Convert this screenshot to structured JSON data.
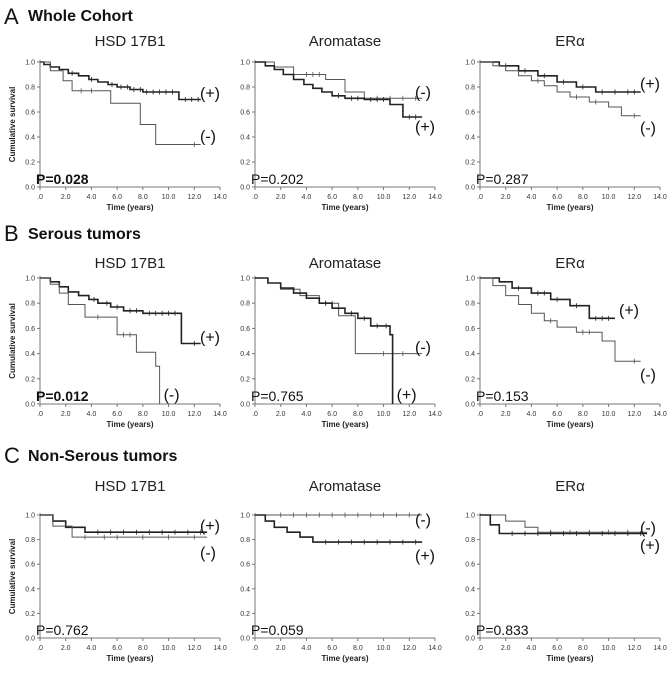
{
  "figure": {
    "sections": [
      {
        "letter": "A",
        "title": "Whole Cohort"
      },
      {
        "letter": "B",
        "title": "Serous tumors"
      },
      {
        "letter": "C",
        "title": "Non-Serous tumors"
      }
    ]
  },
  "chart_data": [
    {
      "type": "line",
      "section": "A",
      "title": "HSD 17B1",
      "xlabel": "Time (years)",
      "ylabel": "Cumulative survival",
      "xlim": [
        0,
        14
      ],
      "ylim": [
        0,
        1
      ],
      "xticks": [
        ".0",
        "2.0",
        "4.0",
        "6.0",
        "8.0",
        "10.0",
        "12.0",
        "14.0"
      ],
      "yticks": [
        "0.0",
        "0.2",
        "0.4",
        "0.6",
        "0.8",
        "1.0"
      ],
      "p_value": "P=0.028",
      "significant": true,
      "series": [
        {
          "name": "(+)",
          "color": "#222222",
          "width": 1.6,
          "x": [
            0,
            0.3,
            0.8,
            1.5,
            2.2,
            3.0,
            3.8,
            4.5,
            5.3,
            6.0,
            7.0,
            8.0,
            10.8,
            12.5
          ],
          "y": [
            1.0,
            0.98,
            0.96,
            0.94,
            0.91,
            0.89,
            0.86,
            0.84,
            0.82,
            0.8,
            0.78,
            0.76,
            0.7,
            0.7
          ],
          "censor": [
            2.5,
            4.0,
            5.6,
            6.3,
            6.8,
            7.3,
            7.8,
            8.3,
            8.8,
            9.3,
            9.8,
            10.3,
            11.3,
            11.8,
            12.3
          ]
        },
        {
          "name": "(-)",
          "color": "#555555",
          "width": 1.0,
          "x": [
            0,
            0.8,
            1.8,
            2.5,
            5.5,
            7.8,
            9.0,
            12.5
          ],
          "y": [
            1.0,
            0.93,
            0.85,
            0.77,
            0.67,
            0.5,
            0.34,
            0.34
          ],
          "censor": [
            3.2,
            4.0,
            12.0
          ]
        }
      ]
    },
    {
      "type": "line",
      "section": "A",
      "title": "Aromatase",
      "xlabel": "Time (years)",
      "ylabel": "",
      "xlim": [
        0,
        14
      ],
      "ylim": [
        0,
        1
      ],
      "xticks": [
        ".0",
        "2.0",
        "4.0",
        "6.0",
        "8.0",
        "10.0",
        "12.0",
        "14.0"
      ],
      "yticks": [
        "0.0",
        "0.2",
        "0.4",
        "0.6",
        "0.8",
        "1.0"
      ],
      "p_value": "P=0.202",
      "significant": false,
      "series": [
        {
          "name": "(-)",
          "color": "#555555",
          "width": 1.0,
          "x": [
            0,
            1.5,
            3.0,
            5.5,
            7.0,
            8.5,
            13.0
          ],
          "y": [
            1.0,
            0.96,
            0.9,
            0.86,
            0.76,
            0.71,
            0.71
          ],
          "censor": [
            4.0,
            4.5,
            5.0,
            9.5,
            10.5,
            11.5,
            12.5
          ]
        },
        {
          "name": "(+)",
          "color": "#222222",
          "width": 1.6,
          "x": [
            0,
            0.8,
            1.5,
            2.2,
            3.0,
            3.8,
            4.5,
            5.2,
            6.0,
            7.0,
            8.5,
            10.5,
            11.5,
            13.0
          ],
          "y": [
            1.0,
            0.97,
            0.94,
            0.9,
            0.86,
            0.82,
            0.79,
            0.76,
            0.73,
            0.71,
            0.7,
            0.66,
            0.56,
            0.56
          ],
          "censor": [
            6.5,
            7.5,
            8.0,
            9.0,
            9.5,
            10.0,
            12.0,
            12.5
          ]
        }
      ]
    },
    {
      "type": "line",
      "section": "A",
      "title": "ERα",
      "xlabel": "Time (years)",
      "ylabel": "",
      "xlim": [
        0,
        14
      ],
      "ylim": [
        0,
        1
      ],
      "xticks": [
        ".0",
        "2.0",
        "4.0",
        "6.0",
        "8.0",
        "10.0",
        "12.0",
        "14.0"
      ],
      "yticks": [
        "0.0",
        "0.2",
        "0.4",
        "0.6",
        "0.8",
        "1.0"
      ],
      "p_value": "P=0.287",
      "significant": false,
      "series": [
        {
          "name": "(+)",
          "color": "#222222",
          "width": 1.6,
          "x": [
            0,
            1.5,
            3.0,
            4.5,
            6.0,
            7.5,
            9.0,
            12.5
          ],
          "y": [
            1.0,
            0.97,
            0.93,
            0.89,
            0.84,
            0.8,
            0.76,
            0.76
          ],
          "censor": [
            2.0,
            3.5,
            5.0,
            6.5,
            8.0,
            9.5,
            10.5,
            11.5,
            12.0
          ]
        },
        {
          "name": "(-)",
          "color": "#555555",
          "width": 1.0,
          "x": [
            0,
            1.0,
            2.0,
            3.0,
            4.0,
            5.0,
            6.0,
            7.0,
            8.5,
            10.0,
            11.0,
            12.5
          ],
          "y": [
            1.0,
            0.97,
            0.93,
            0.89,
            0.85,
            0.81,
            0.76,
            0.72,
            0.68,
            0.64,
            0.57,
            0.57
          ],
          "censor": [
            4.5,
            7.5,
            9.0,
            12.0
          ]
        }
      ]
    },
    {
      "type": "line",
      "section": "B",
      "title": "HSD 17B1",
      "xlabel": "Time (years)",
      "ylabel": "Cumulative survival",
      "xlim": [
        0,
        14
      ],
      "ylim": [
        0,
        1
      ],
      "xticks": [
        ".0",
        "2.0",
        "4.0",
        "6.0",
        "8.0",
        "10.0",
        "12.0",
        "14.0"
      ],
      "yticks": [
        "0.0",
        "0.2",
        "0.4",
        "0.6",
        "0.8",
        "1.0"
      ],
      "p_value": "P=0.012",
      "significant": true,
      "series": [
        {
          "name": "(+)",
          "color": "#222222",
          "width": 1.6,
          "x": [
            0,
            0.8,
            1.5,
            2.2,
            3.0,
            3.8,
            4.5,
            5.5,
            6.5,
            8.0,
            11.0,
            12.5
          ],
          "y": [
            1.0,
            0.97,
            0.93,
            0.89,
            0.86,
            0.83,
            0.8,
            0.77,
            0.74,
            0.72,
            0.48,
            0.48
          ],
          "censor": [
            4.2,
            5.2,
            6.0,
            7.0,
            7.5,
            8.5,
            9.0,
            9.5,
            10.0,
            10.5,
            12.0
          ]
        },
        {
          "name": "(-)",
          "color": "#555555",
          "width": 1.0,
          "x": [
            0,
            0.8,
            1.5,
            2.2,
            3.5,
            6.0,
            7.5,
            9.0,
            9.3
          ],
          "y": [
            1.0,
            0.95,
            0.88,
            0.79,
            0.69,
            0.55,
            0.41,
            0.3,
            0.0
          ],
          "censor": [
            4.5,
            6.5,
            7.0
          ]
        }
      ]
    },
    {
      "type": "line",
      "section": "B",
      "title": "Aromatase",
      "xlabel": "Time (years)",
      "ylabel": "",
      "xlim": [
        0,
        14
      ],
      "ylim": [
        0,
        1
      ],
      "xticks": [
        ".0",
        "2.0",
        "4.0",
        "6.0",
        "8.0",
        "10.0",
        "12.0",
        "14.0"
      ],
      "yticks": [
        "0.0",
        "0.2",
        "0.4",
        "0.6",
        "0.8",
        "1.0"
      ],
      "p_value": "P=0.765",
      "significant": false,
      "series": [
        {
          "name": "(-)",
          "color": "#555555",
          "width": 1.0,
          "x": [
            0,
            1.0,
            2.0,
            3.5,
            5.0,
            6.5,
            7.8,
            13.0
          ],
          "y": [
            1.0,
            0.96,
            0.91,
            0.86,
            0.8,
            0.7,
            0.4,
            0.4
          ],
          "censor": [
            4.0,
            5.5,
            6.0,
            10.0,
            11.5
          ]
        },
        {
          "name": "(+)",
          "color": "#222222",
          "width": 1.6,
          "x": [
            0,
            1.0,
            2.0,
            3.0,
            4.0,
            5.0,
            6.0,
            7.0,
            8.0,
            9.0,
            10.5,
            10.7
          ],
          "y": [
            1.0,
            0.96,
            0.92,
            0.88,
            0.84,
            0.8,
            0.76,
            0.72,
            0.68,
            0.62,
            0.55,
            0.0
          ],
          "censor": [
            5.5,
            7.5,
            8.5,
            9.5,
            10.2
          ]
        }
      ]
    },
    {
      "type": "line",
      "section": "B",
      "title": "ERα",
      "xlabel": "Time (years)",
      "ylabel": "",
      "xlim": [
        0,
        14
      ],
      "ylim": [
        0,
        1
      ],
      "xticks": [
        ".0",
        "2.0",
        "4.0",
        "6.0",
        "8.0",
        "10.0",
        "12.0",
        "14.0"
      ],
      "yticks": [
        "0.0",
        "0.2",
        "0.4",
        "0.6",
        "0.8",
        "1.0"
      ],
      "p_value": "P=0.153",
      "significant": false,
      "series": [
        {
          "name": "(+)",
          "color": "#222222",
          "width": 1.6,
          "x": [
            0,
            1.5,
            2.5,
            4.0,
            5.5,
            7.0,
            8.5,
            10.5
          ],
          "y": [
            1.0,
            0.97,
            0.92,
            0.88,
            0.83,
            0.78,
            0.68,
            0.68
          ],
          "censor": [
            3.0,
            4.5,
            5.0,
            6.0,
            7.5,
            9.0,
            9.5,
            10.0
          ]
        },
        {
          "name": "(-)",
          "color": "#555555",
          "width": 1.0,
          "x": [
            0,
            1.0,
            2.0,
            3.0,
            4.0,
            5.0,
            6.0,
            7.5,
            9.5,
            10.5,
            12.5
          ],
          "y": [
            1.0,
            0.94,
            0.86,
            0.79,
            0.72,
            0.66,
            0.61,
            0.57,
            0.5,
            0.34,
            0.34
          ],
          "censor": [
            5.5,
            8.0,
            8.5,
            12.0
          ]
        }
      ]
    },
    {
      "type": "line",
      "section": "C",
      "title": "HSD 17B1",
      "xlabel": "Time (years)",
      "ylabel": "Cumulative survival",
      "xlim": [
        0,
        14
      ],
      "ylim": [
        0,
        1
      ],
      "xticks": [
        ".0",
        "2.0",
        "4.0",
        "6.0",
        "8.0",
        "10.0",
        "12.0",
        "14.0"
      ],
      "yticks": [
        "0.0",
        "0.2",
        "0.4",
        "0.6",
        "0.8",
        "1.0"
      ],
      "p_value": "P=0.762",
      "significant": false,
      "series": [
        {
          "name": "(+)",
          "color": "#222222",
          "width": 1.6,
          "x": [
            0,
            1.0,
            2.0,
            3.5,
            13.0
          ],
          "y": [
            1.0,
            0.95,
            0.9,
            0.86,
            0.86
          ],
          "censor": [
            4.5,
            5.5,
            6.5,
            7.5,
            8.5,
            9.5,
            10.5,
            11.5,
            12.5
          ]
        },
        {
          "name": "(-)",
          "color": "#555555",
          "width": 1.0,
          "x": [
            0,
            1.0,
            2.5,
            13.0
          ],
          "y": [
            1.0,
            0.91,
            0.82,
            0.82
          ],
          "censor": [
            3.5,
            5.0,
            6.0,
            8.0,
            10.0,
            12.0
          ]
        }
      ]
    },
    {
      "type": "line",
      "section": "C",
      "title": "Aromatase",
      "xlabel": "Time (years)",
      "ylabel": "",
      "xlim": [
        0,
        14
      ],
      "ylim": [
        0,
        1
      ],
      "xticks": [
        ".0",
        "2.0",
        "4.0",
        "6.0",
        "8.0",
        "10.0",
        "12.0",
        "14.0"
      ],
      "yticks": [
        "0.0",
        "0.2",
        "0.4",
        "0.6",
        "0.8",
        "1.0"
      ],
      "p_value": "P=0.059",
      "significant": false,
      "series": [
        {
          "name": "(-)",
          "color": "#555555",
          "width": 1.0,
          "x": [
            0,
            13.0
          ],
          "y": [
            1.0,
            1.0
          ],
          "censor": [
            2.0,
            3.0,
            4.0,
            5.0,
            6.0,
            7.0,
            8.0,
            9.0,
            10.0,
            11.0,
            12.0
          ]
        },
        {
          "name": "(+)",
          "color": "#222222",
          "width": 1.6,
          "x": [
            0,
            0.8,
            1.5,
            2.5,
            3.5,
            4.5,
            13.0
          ],
          "y": [
            1.0,
            0.95,
            0.9,
            0.86,
            0.82,
            0.78,
            0.78
          ],
          "censor": [
            5.5,
            6.5,
            7.5,
            8.5,
            9.5,
            10.5,
            11.5,
            12.5
          ]
        }
      ]
    },
    {
      "type": "line",
      "section": "C",
      "title": "ERα",
      "xlabel": "Time (years)",
      "ylabel": "",
      "xlim": [
        0,
        14
      ],
      "ylim": [
        0,
        1
      ],
      "xticks": [
        ".0",
        "2.0",
        "4.0",
        "6.0",
        "8.0",
        "10.0",
        "12.0",
        "14.0"
      ],
      "yticks": [
        "0.0",
        "0.2",
        "0.4",
        "0.6",
        "0.8",
        "1.0"
      ],
      "p_value": "P=0.833",
      "significant": false,
      "series": [
        {
          "name": "(-)",
          "color": "#555555",
          "width": 1.0,
          "x": [
            0,
            2.0,
            3.5,
            4.5,
            13.0
          ],
          "y": [
            1.0,
            0.95,
            0.9,
            0.86,
            0.86
          ],
          "censor": [
            5.5,
            7.0,
            8.5,
            10.0,
            11.5
          ]
        },
        {
          "name": "(+)",
          "color": "#222222",
          "width": 1.6,
          "x": [
            0,
            0.8,
            1.5,
            13.0
          ],
          "y": [
            1.0,
            0.92,
            0.85,
            0.85
          ],
          "censor": [
            2.5,
            3.5,
            4.5,
            5.5,
            6.5,
            7.5,
            8.5,
            9.5,
            10.5,
            11.5,
            12.5
          ]
        }
      ]
    }
  ]
}
